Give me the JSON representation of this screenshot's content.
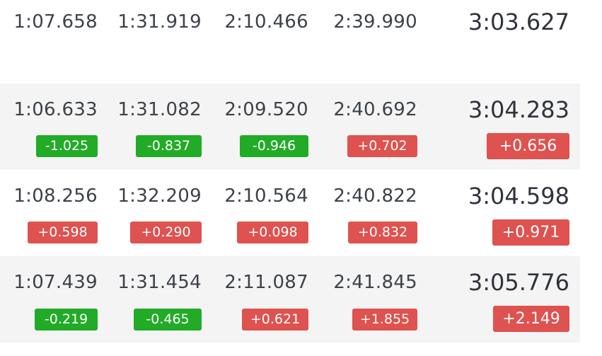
{
  "rows": [
    {
      "times": [
        "1:07.658",
        "1:31.919",
        "2:10.466",
        "2:39.990"
      ],
      "total": "3:03.627",
      "deltas": [],
      "total_delta": null
    },
    {
      "times": [
        "1:06.633",
        "1:31.082",
        "2:09.520",
        "2:40.692"
      ],
      "total": "3:04.283",
      "deltas": [
        {
          "value": "-1.025",
          "sign": "neg"
        },
        {
          "value": "-0.837",
          "sign": "neg"
        },
        {
          "value": "-0.946",
          "sign": "neg"
        },
        {
          "value": "+0.702",
          "sign": "pos"
        }
      ],
      "total_delta": {
        "value": "+0.656",
        "sign": "pos"
      }
    },
    {
      "times": [
        "1:08.256",
        "1:32.209",
        "2:10.564",
        "2:40.822"
      ],
      "total": "3:04.598",
      "deltas": [
        {
          "value": "+0.598",
          "sign": "pos"
        },
        {
          "value": "+0.290",
          "sign": "pos"
        },
        {
          "value": "+0.098",
          "sign": "pos"
        },
        {
          "value": "+0.832",
          "sign": "pos"
        }
      ],
      "total_delta": {
        "value": "+0.971",
        "sign": "pos"
      }
    },
    {
      "times": [
        "1:07.439",
        "1:31.454",
        "2:11.087",
        "2:41.845"
      ],
      "total": "3:05.776",
      "deltas": [
        {
          "value": "-0.219",
          "sign": "neg"
        },
        {
          "value": "-0.465",
          "sign": "neg"
        },
        {
          "value": "+0.621",
          "sign": "pos"
        },
        {
          "value": "+1.855",
          "sign": "pos"
        }
      ],
      "total_delta": {
        "value": "+2.149",
        "sign": "pos"
      }
    }
  ],
  "colors": {
    "negative": "#22ab27",
    "positive": "#de524f",
    "shade": "#f4f4f4"
  }
}
